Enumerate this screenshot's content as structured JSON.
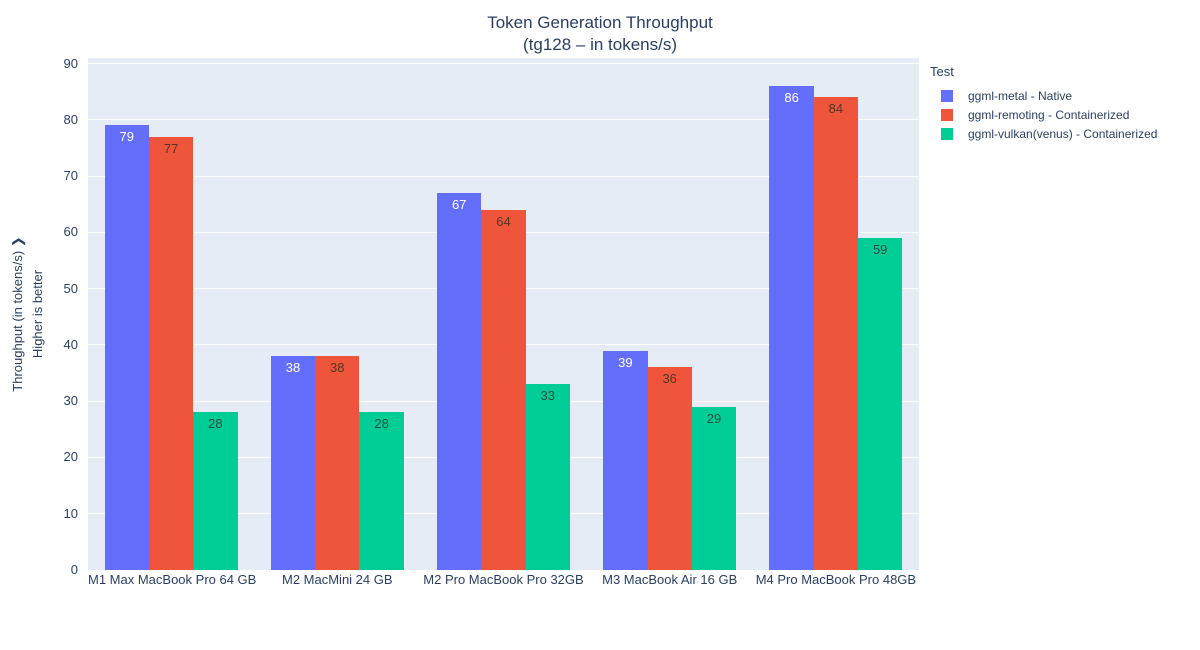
{
  "figure": {
    "title_line1": "Token Generation Throughput",
    "title_line2": "(tg128 – in tokens/s)"
  },
  "y_axis": {
    "title_line1": "Throughput (in tokens/s) ❯",
    "title_line2": "Higher is better",
    "ticks": [
      0,
      10,
      20,
      30,
      40,
      50,
      60,
      70,
      80,
      90
    ]
  },
  "legend": {
    "title": "Test"
  },
  "colors": {
    "plot_background": "#e5ecf6",
    "gridline": "#ffffff",
    "text": "#2a3f5f"
  },
  "chart_data": {
    "type": "bar",
    "title": "Token Generation Throughput (tg128 – in tokens/s)",
    "xlabel": "",
    "ylabel": "Throughput (in tokens/s) — Higher is better",
    "ylim": [
      0,
      90
    ],
    "yticks": [
      0,
      10,
      20,
      30,
      40,
      50,
      60,
      70,
      80,
      90
    ],
    "grid": true,
    "legend_title": "Test",
    "legend_position": "right",
    "categories": [
      "M1 Max MacBook Pro 64 GB",
      "M2 MacMini 24 GB",
      "M2 Pro MacBook Pro 32GB",
      "M3 MacBook Air 16 GB",
      "M4 Pro MacBook Pro 48GB"
    ],
    "series": [
      {
        "name": "ggml-metal - Native",
        "color": "#636efa",
        "label_color": "#ffffff",
        "values": [
          79,
          38,
          67,
          39,
          86
        ]
      },
      {
        "name": "ggml-remoting - Containerized",
        "color": "#ef553b",
        "label_color": "#5b332a",
        "values": [
          77,
          38,
          64,
          36,
          84
        ]
      },
      {
        "name": "ggml-vulkan(venus) - Containerized",
        "color": "#00cc96",
        "label_color": "#235244",
        "values": [
          28,
          28,
          33,
          29,
          59
        ]
      }
    ]
  }
}
